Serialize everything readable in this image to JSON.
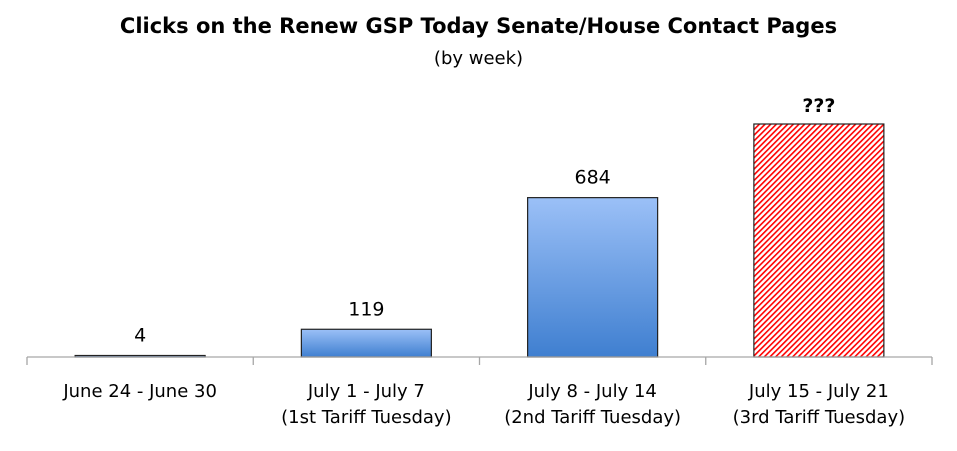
{
  "chart_data": {
    "type": "bar",
    "title": "Clicks on the Renew GSP Today Senate/House Contact Pages",
    "subtitle": "(by week)",
    "categories": [
      [
        "June 24 - June 30"
      ],
      [
        "July 1 - July 7",
        "(1st Tariff Tuesday)"
      ],
      [
        "July 8 - July 14",
        "(2nd Tariff Tuesday)"
      ],
      [
        "July 15 - July 21",
        "(3rd Tariff Tuesday)"
      ]
    ],
    "values": [
      4,
      119,
      684,
      1000
    ],
    "data_labels": [
      "4",
      "119",
      "684",
      "???"
    ],
    "bar_styles": [
      "blue-gradient",
      "blue-gradient",
      "blue-gradient",
      "red-hatched"
    ],
    "colors": {
      "bar_top": "#9bc0f7",
      "bar_bottom": "#3f7fd0",
      "hatch": "#ff0000",
      "unknown_label": "#ff0000",
      "axis": "#a6a6a6"
    },
    "ylim": [
      0,
      1000
    ],
    "grid": false,
    "legend": "none"
  }
}
